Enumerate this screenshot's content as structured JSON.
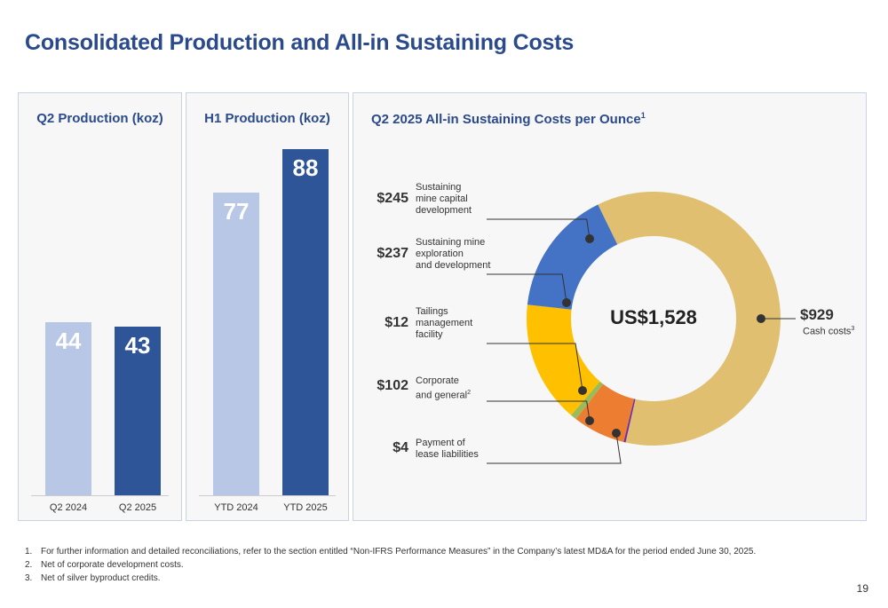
{
  "title": "Consolidated Production and All-in Sustaining Costs",
  "chart_data": [
    {
      "type": "bar",
      "title": "Q2 Production (koz)",
      "categories": [
        "Q2 2024",
        "Q2 2025"
      ],
      "values": [
        44,
        43
      ],
      "ylim": [
        0,
        100
      ],
      "colors": [
        "#b8c7e6",
        "#2e5597"
      ]
    },
    {
      "type": "bar",
      "title": "H1 Production (koz)",
      "categories": [
        "YTD 2024",
        "YTD 2025"
      ],
      "values": [
        77,
        88
      ],
      "ylim": [
        0,
        100
      ],
      "colors": [
        "#b8c7e6",
        "#2e5597"
      ]
    },
    {
      "type": "pie",
      "title": "Q2 2025 All-in Sustaining Costs per Ounce",
      "title_sup": "1",
      "center_label": "US$1,528",
      "segments": [
        {
          "label_lines": [
            "Cash costs"
          ],
          "label_sup": "3",
          "amount": "$929",
          "value": 929,
          "color": "#e0c070"
        },
        {
          "label_lines": [
            "Payment of",
            "lease liabilities"
          ],
          "amount": "$4",
          "value": 4,
          "color": "#7030a0"
        },
        {
          "label_lines": [
            "Corporate",
            "and general"
          ],
          "label_sup": "2",
          "amount": "$102",
          "value": 102,
          "color": "#ed7d31"
        },
        {
          "label_lines": [
            "Tailings",
            "management",
            "facility"
          ],
          "amount": "$12",
          "value": 12,
          "color": "#9bbb59"
        },
        {
          "label_lines": [
            "Sustaining mine",
            "exploration",
            "and development"
          ],
          "amount": "$237",
          "value": 237,
          "color": "#ffc000"
        },
        {
          "label_lines": [
            "Sustaining",
            "mine capital",
            "development"
          ],
          "amount": "$245",
          "value": 245,
          "color": "#4472c4"
        }
      ]
    }
  ],
  "footnotes": [
    {
      "num": "1.",
      "text": "For further information and detailed reconciliations, refer to the section entitled “Non-IFRS Performance Measures” in the Company’s latest MD&A for the period ended June 30, 2025."
    },
    {
      "num": "2.",
      "text": "Net of corporate development costs."
    },
    {
      "num": "3.",
      "text": "Net of silver byproduct credits."
    }
  ],
  "page_number": "19"
}
